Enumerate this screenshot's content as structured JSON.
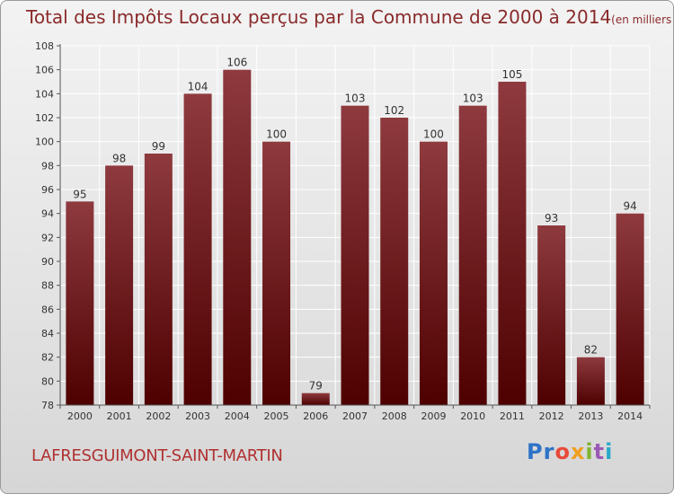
{
  "title": "Total des Impôts Locaux perçus par la Commune de 2000 à 2014",
  "title_unit": "(en milliers d'€)",
  "commune": "LAFRESGUIMONT-SAINT-MARTIN",
  "logo": {
    "letters": [
      "Pr",
      "o",
      "x",
      "i",
      "t",
      "i"
    ],
    "text": "Proxiti"
  },
  "colors": {
    "bar_top": "#8e3a3f",
    "bar_bottom": "#4e0000",
    "axis": "#555555",
    "grid": "#ffffff",
    "title": "#8a2a2a"
  },
  "chart_data": {
    "type": "bar",
    "title": "Total des Impôts Locaux perçus par la Commune de 2000 à 2014",
    "xlabel": "",
    "ylabel": "",
    "ylim": [
      78,
      108
    ],
    "yticks": [
      78,
      80,
      82,
      84,
      86,
      88,
      90,
      92,
      94,
      96,
      98,
      100,
      102,
      104,
      106,
      108
    ],
    "grid": true,
    "categories": [
      "2000",
      "2001",
      "2002",
      "2003",
      "2004",
      "2005",
      "2006",
      "2007",
      "2008",
      "2009",
      "2010",
      "2011",
      "2012",
      "2013",
      "2014"
    ],
    "values": [
      95,
      98,
      99,
      104,
      106,
      100,
      79,
      103,
      102,
      100,
      103,
      105,
      93,
      82,
      94
    ]
  }
}
